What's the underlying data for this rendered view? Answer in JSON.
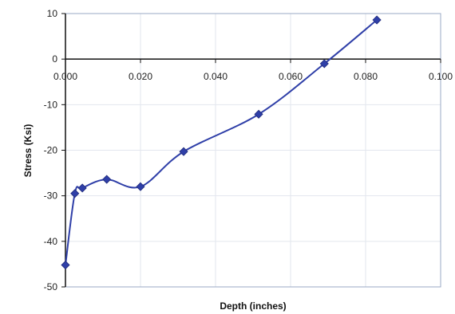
{
  "chart_data": {
    "type": "scatter",
    "title": "",
    "xlabel": "Depth (inches)",
    "ylabel": "Stress (Ksi)",
    "xlim": [
      0,
      0.1
    ],
    "ylim": [
      -50,
      10
    ],
    "x_ticks": [
      "0.000",
      "0.020",
      "0.040",
      "0.060",
      "0.080",
      "0.100"
    ],
    "y_ticks": [
      "10",
      "0",
      "-10",
      "-20",
      "-30",
      "-40",
      "-50"
    ],
    "grid": true,
    "legend": false,
    "series": [
      {
        "x": [
          0.0,
          0.0025,
          0.0045,
          0.011,
          0.02,
          0.0315,
          0.0515,
          0.069,
          0.083
        ],
        "y": [
          -45.2,
          -29.5,
          -28.3,
          -26.4,
          -28.0,
          -20.3,
          -12.1,
          -1.0,
          8.6
        ],
        "color": "#2F3FA8",
        "line": "smooth",
        "marker": "diamond"
      }
    ]
  }
}
